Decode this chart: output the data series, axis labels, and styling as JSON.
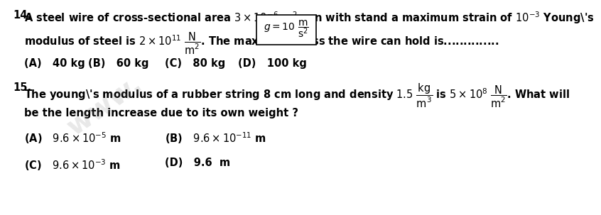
{
  "bg_color": "#ffffff",
  "watermark_text": "www.",
  "q14_num": "14.",
  "q14_line1": "A steel wire of cross-sectional area $3 \\times 10^{-6}$ m$^2$ can with stand a maximum strain of $10^{-3}$ Young's",
  "q14_line2_part1": "modulus of steel is $2 \\times 10^{11}$ $\\dfrac{N}{m^2}$. The maximum mass the wire can hold is..............",
  "q14_box": "$g = 10\\ \\dfrac{m}{s^2}$",
  "q14_A": "(A)   40 kg",
  "q14_B": "(B)   60 kg",
  "q14_C": "(C)   80 kg",
  "q14_D": "(D)   100 kg",
  "q15_num": "15.",
  "q15_line1": "The young's modulus of a rubber string 8 cm long and density $1.5\\ \\dfrac{kg}{m^3}$ is $5 \\times 10^{8}$ $\\dfrac{N}{m^2}$. What will",
  "q15_line2": "be the length increase due to its own weight ?",
  "q15_A": "(A)   $9.6 \\times 10^{-5}$ m",
  "q15_B": "(B)   $9.6 \\times 10^{-11}$ m",
  "q15_C": "(C)   $9.6 \\times 10^{-3}$ m",
  "q15_D": "(D)   9.6  m",
  "font_size": 10.5,
  "small_font": 9.5
}
